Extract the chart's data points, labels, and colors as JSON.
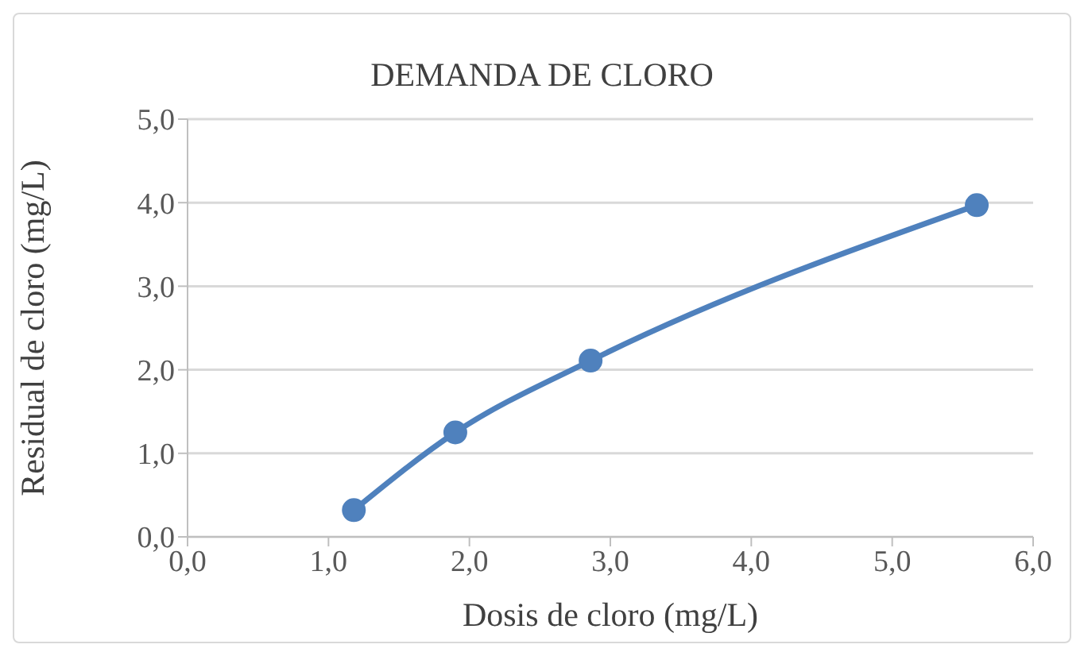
{
  "chart_data": {
    "type": "line",
    "title": "DEMANDA DE CLORO",
    "xlabel": "Dosis de cloro (mg/L)",
    "ylabel": "Residual de cloro (mg/L)",
    "x": [
      1.18,
      1.9,
      2.86,
      5.6
    ],
    "series": [
      {
        "color": "#4f81bd",
        "values": [
          0.32,
          1.25,
          2.11,
          3.97
        ]
      }
    ],
    "xlim": [
      0,
      6
    ],
    "xticks": [
      {
        "value": 0,
        "label": "0,0"
      },
      {
        "value": 1,
        "label": "1,0"
      },
      {
        "value": 2,
        "label": "2,0"
      },
      {
        "value": 3,
        "label": "3,0"
      },
      {
        "value": 4,
        "label": "4,0"
      },
      {
        "value": 5,
        "label": "5,0"
      },
      {
        "value": 6,
        "label": "6,0"
      }
    ],
    "ylim": [
      0,
      5
    ],
    "yticks": [
      {
        "value": 0,
        "label": "0,0"
      },
      {
        "value": 1,
        "label": "1,0"
      },
      {
        "value": 2,
        "label": "2,0"
      },
      {
        "value": 3,
        "label": "3,0"
      },
      {
        "value": 4,
        "label": "4,0"
      },
      {
        "value": 5,
        "label": "5,0"
      }
    ],
    "grid": "y",
    "marker": "circle",
    "line_style": "solid",
    "legend": false
  }
}
